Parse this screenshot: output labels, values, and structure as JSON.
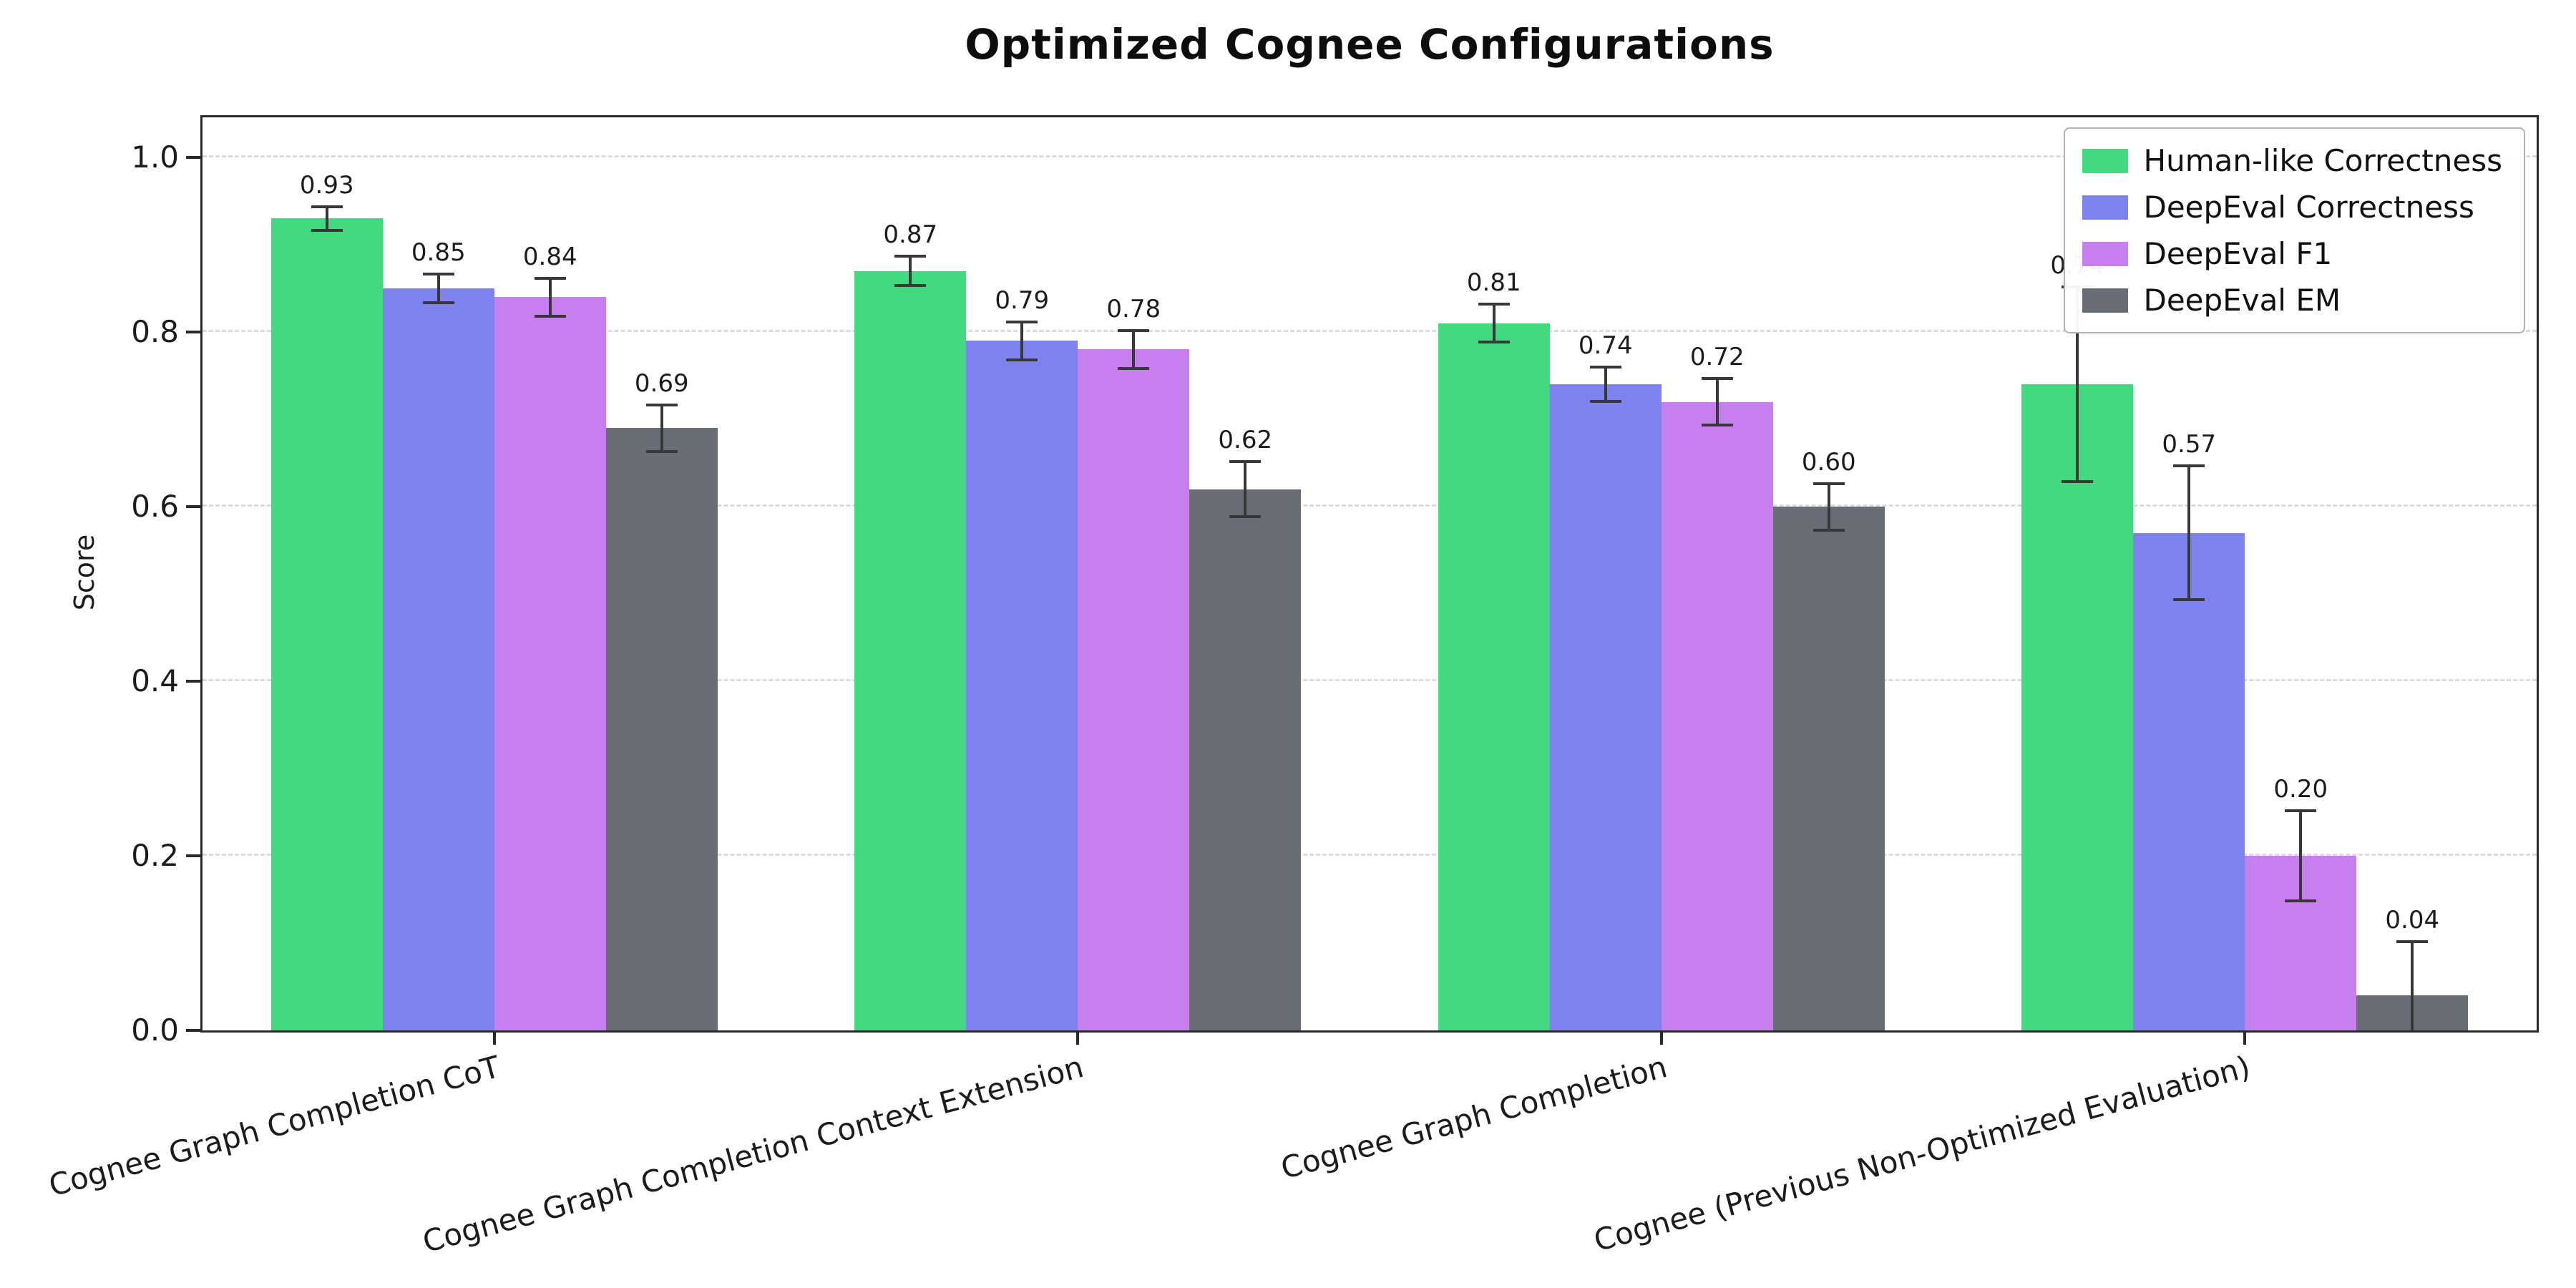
{
  "title": "Optimized Cognee Configurations",
  "chart_data": {
    "type": "bar",
    "title": "Optimized Cognee Configurations",
    "xlabel": "",
    "ylabel": "Score",
    "ylim": [
      0,
      1.05
    ],
    "yticks": [
      0.0,
      0.2,
      0.4,
      0.6,
      0.8,
      1.0
    ],
    "grid": "horizontal-dashed",
    "legend_position": "upper right",
    "error_bars": true,
    "categories": [
      "Cognee Graph Completion CoT",
      "Cognee Graph Completion Context Extension",
      "Cognee Graph Completion",
      "Cognee (Previous Non-Optimized Evaluation)"
    ],
    "series": [
      {
        "name": "Human-like Correctness",
        "color": "#42da7e",
        "values": [
          0.93,
          0.87,
          0.81,
          0.74
        ],
        "errors": [
          0.012,
          0.015,
          0.02,
          0.11
        ]
      },
      {
        "name": "DeepEval Correctness",
        "color": "#7d82ee",
        "values": [
          0.85,
          0.79,
          0.74,
          0.57
        ],
        "errors": [
          0.015,
          0.02,
          0.018,
          0.075
        ]
      },
      {
        "name": "DeepEval F1",
        "color": "#c77ff0",
        "values": [
          0.84,
          0.78,
          0.72,
          0.2
        ],
        "errors": [
          0.02,
          0.02,
          0.025,
          0.05
        ]
      },
      {
        "name": "DeepEval EM",
        "color": "#696d76",
        "values": [
          0.69,
          0.62,
          0.6,
          0.04
        ],
        "errors": [
          0.025,
          0.03,
          0.025,
          0.06
        ]
      }
    ]
  }
}
